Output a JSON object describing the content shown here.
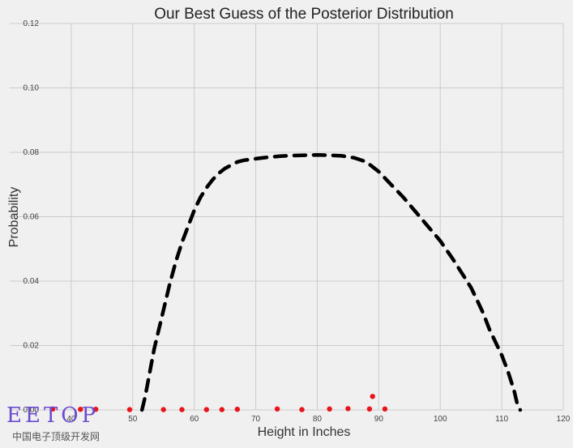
{
  "chart_data": {
    "type": "scatter",
    "title": "Our Best Guess of the Posterior Distribution",
    "xlabel": "Height in Inches",
    "ylabel": "Probability",
    "xlim": [
      30,
      120
    ],
    "ylim": [
      0,
      0.12
    ],
    "xticks": [
      "40",
      "50",
      "60",
      "70",
      "80",
      "90",
      "100",
      "110",
      "120"
    ],
    "yticks": [
      "0.00",
      "0.02",
      "0.04",
      "0.06",
      "0.08",
      "0.10",
      "0.12"
    ],
    "xtick_values": [
      40,
      50,
      60,
      70,
      80,
      90,
      100,
      110,
      120
    ],
    "ytick_values": [
      0,
      0.02,
      0.04,
      0.06,
      0.08,
      0.1,
      0.12
    ],
    "grid": true,
    "series": [
      {
        "style": "dashed line",
        "color": "#000000",
        "x": [
          51.5,
          52,
          52.5,
          53,
          53.5,
          54,
          55,
          56,
          57,
          58,
          59,
          60,
          61,
          62,
          63,
          64,
          65,
          66,
          67,
          68,
          70,
          72,
          74,
          76,
          78,
          80,
          82,
          84,
          86,
          88,
          89,
          90,
          91,
          92,
          94,
          96,
          98,
          100,
          102,
          104,
          105,
          106,
          107,
          108,
          109,
          110,
          111,
          112,
          112.5,
          113
        ],
        "y": [
          0.0,
          0.004,
          0.009,
          0.014,
          0.019,
          0.023,
          0.031,
          0.039,
          0.046,
          0.052,
          0.057,
          0.062,
          0.066,
          0.069,
          0.0715,
          0.0735,
          0.075,
          0.076,
          0.077,
          0.0775,
          0.078,
          0.0785,
          0.0788,
          0.079,
          0.0791,
          0.0792,
          0.0791,
          0.0789,
          0.0783,
          0.077,
          0.0755,
          0.074,
          0.072,
          0.07,
          0.066,
          0.0615,
          0.057,
          0.0525,
          0.047,
          0.041,
          0.038,
          0.034,
          0.03,
          0.025,
          0.021,
          0.017,
          0.012,
          0.006,
          0.002,
          0.0
        ]
      },
      {
        "style": "markers",
        "color": "#e8141a",
        "x": [
          37,
          41.5,
          44,
          49.5,
          55,
          58,
          62,
          64.5,
          67,
          73.5,
          77.5,
          82,
          85,
          88.5,
          89,
          91
        ],
        "y": [
          0.0003,
          0.0002,
          0.0002,
          0.0001,
          0.0001,
          0.0001,
          0.0001,
          0.0001,
          0.0002,
          0.0003,
          0.0001,
          0.0003,
          0.0004,
          0.0003,
          0.0042,
          0.0003
        ]
      }
    ]
  },
  "watermark": {
    "logo": "EETOP",
    "caption": "中国电子顶级开发网"
  }
}
